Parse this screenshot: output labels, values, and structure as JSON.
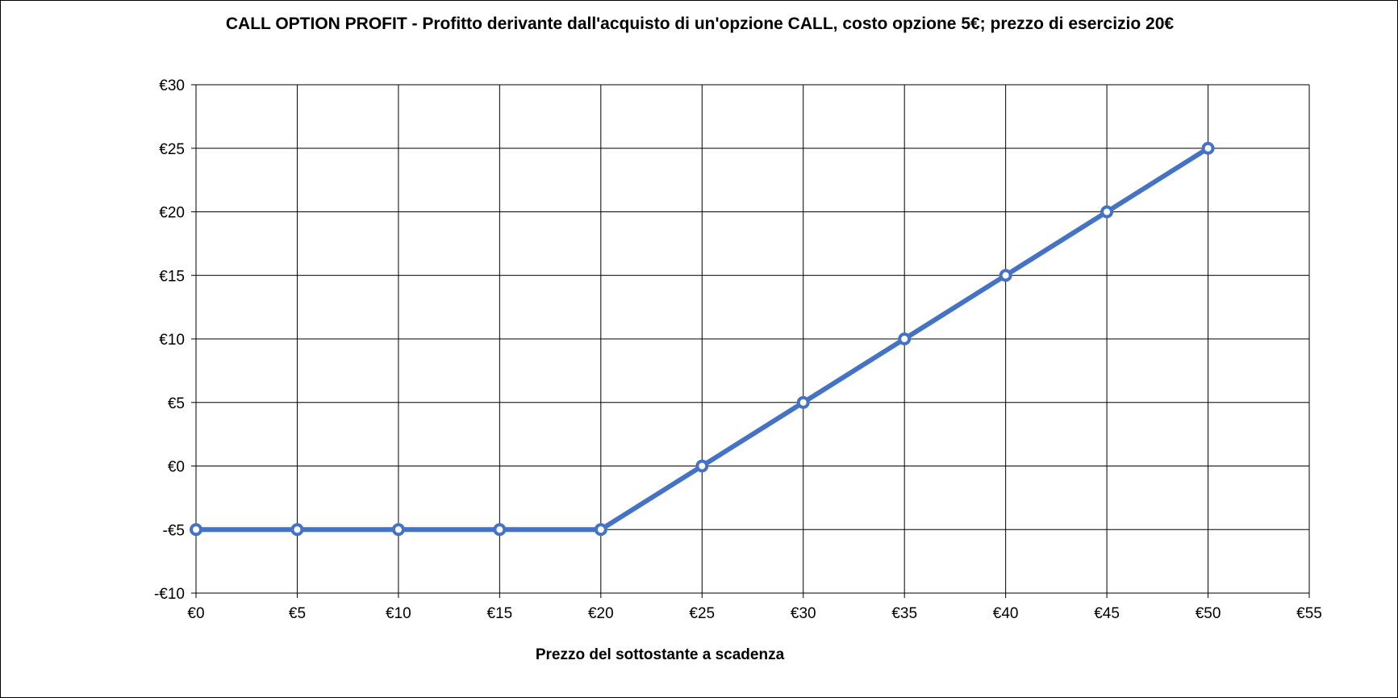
{
  "chart_data": {
    "type": "line",
    "title": "CALL OPTION PROFIT - Profitto derivante dall'acquisto di un'opzione CALL, costo opzione 5€; prezzo di esercizio 20€",
    "xlabel": "Prezzo del sottostante a scadenza",
    "ylabel": "",
    "xlim": [
      0,
      55
    ],
    "ylim": [
      -10,
      30
    ],
    "x_ticks": [
      0,
      5,
      10,
      15,
      20,
      25,
      30,
      35,
      40,
      45,
      50,
      55
    ],
    "x_tick_labels": [
      "€0",
      "€5",
      "€10",
      "€15",
      "€20",
      "€25",
      "€30",
      "€35",
      "€40",
      "€45",
      "€50",
      "€55"
    ],
    "y_ticks": [
      -10,
      -5,
      0,
      5,
      10,
      15,
      20,
      25,
      30
    ],
    "y_tick_labels": [
      "-€10",
      "-€5",
      "€0",
      "€5",
      "€10",
      "€15",
      "€20",
      "€25",
      "€30"
    ],
    "grid": true,
    "legend": "none",
    "series": [
      {
        "x": [
          0,
          5,
          10,
          15,
          20,
          25,
          30,
          35,
          40,
          45,
          50
        ],
        "y": [
          -5,
          -5,
          -5,
          -5,
          -5,
          0,
          5,
          10,
          15,
          20,
          25
        ],
        "color": "#4472C4"
      }
    ]
  }
}
